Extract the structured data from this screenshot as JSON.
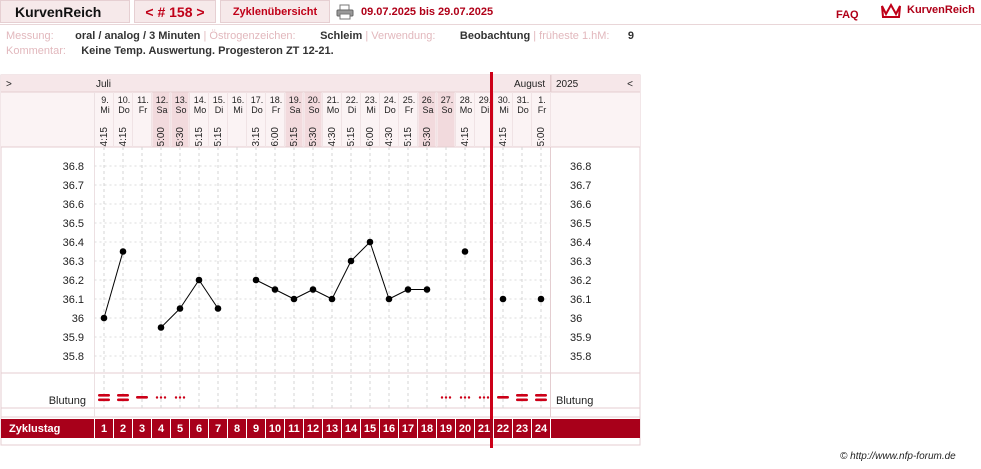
{
  "header": {
    "title": "KurvenReich",
    "cycle_number": "< # 158 >",
    "tab_overview": "Zyklenübersicht",
    "date_range": "09.07.2025 bis 29.07.2025",
    "faq": "FAQ",
    "logo_text": "KurvenReich"
  },
  "info": {
    "measurement_label": "Messung:",
    "measurement_value": "oral / analog / 3 Minuten",
    "estrogen_label": "Östrogenzeichen:",
    "estrogen_value": "Schleim",
    "usage_label": "Verwendung:",
    "usage_value": "Beobachtung",
    "earliest_label": "früheste 1.hM:",
    "earliest_value": "9",
    "comment_label": "Kommentar:",
    "comment_value": "Keine Temp. Auswertung. Progesteron ZT 12-21."
  },
  "chart_nav": {
    "prev": ">",
    "next": "<",
    "month1": "Juli",
    "month2": "August",
    "year": "2025"
  },
  "row_labels": {
    "bleeding": "Blutung",
    "cycle_day": "Zyklustag"
  },
  "copyright": "© http://www.nfp-forum.de",
  "chart_data": {
    "type": "line",
    "title": "",
    "xlabel": "Zyklustag",
    "ylabel": "",
    "ylim": [
      35.8,
      36.8
    ],
    "y_ticks": [
      "36.8",
      "36.7",
      "36.6",
      "36.5",
      "36.4",
      "36.3",
      "36.2",
      "36.1",
      "36",
      "35.9",
      "35.8"
    ],
    "cycle_days": [
      1,
      2,
      3,
      4,
      5,
      6,
      7,
      8,
      9,
      10,
      11,
      12,
      13,
      14,
      15,
      16,
      17,
      18,
      19,
      20,
      21,
      22,
      23,
      24
    ],
    "dates": [
      "9.",
      "10.",
      "11.",
      "12.",
      "13.",
      "14.",
      "15.",
      "16.",
      "17.",
      "18.",
      "19.",
      "20.",
      "21.",
      "22.",
      "23.",
      "24.",
      "25.",
      "26.",
      "27.",
      "28.",
      "29.",
      "30.",
      "31.",
      "1."
    ],
    "weekdays": [
      "Mi",
      "Do",
      "Fr",
      "Sa",
      "So",
      "Mo",
      "Di",
      "Mi",
      "Do",
      "Fr",
      "Sa",
      "So",
      "Mo",
      "Di",
      "Mi",
      "Do",
      "Fr",
      "Sa",
      "So",
      "Mo",
      "Di",
      "Mi",
      "Do",
      "Fr"
    ],
    "times": [
      "4:15",
      "4:15",
      "",
      "5:00",
      "5:30",
      "5:15",
      "5:15",
      "",
      "3:15",
      "6:00",
      "5:15",
      "5:30",
      "4:30",
      "5:15",
      "6:00",
      "4:30",
      "5:15",
      "5:30",
      "",
      "4:15",
      "",
      "4:15",
      "",
      "5:00"
    ],
    "temperatures": [
      36.0,
      36.35,
      null,
      35.95,
      36.05,
      36.2,
      36.05,
      null,
      36.2,
      36.15,
      36.1,
      36.15,
      36.1,
      36.3,
      36.4,
      36.1,
      36.15,
      36.15,
      null,
      36.35,
      null,
      36.1,
      null,
      36.1
    ],
    "bleeding": [
      "heavy",
      "heavy",
      "medium",
      "spotting",
      "spotting",
      "",
      "",
      "",
      "",
      "",
      "",
      "",
      "",
      "",
      "",
      "",
      "",
      "",
      "spotting",
      "spotting",
      "spotting",
      "medium",
      "heavy",
      "heavy"
    ],
    "new_cycle_marker_after_day": 21,
    "weekend_shading": true
  }
}
